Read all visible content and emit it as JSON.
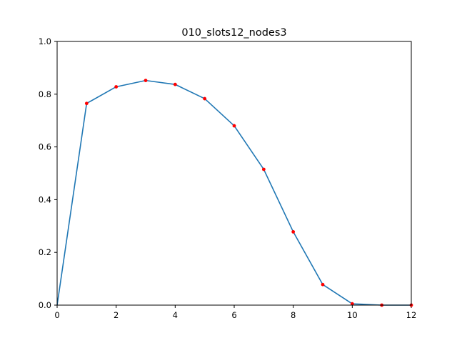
{
  "chart_data": {
    "type": "line",
    "title": "010_slots12_nodes3",
    "xlabel": "",
    "ylabel": "",
    "xlim": [
      0,
      12
    ],
    "ylim": [
      0,
      1.0
    ],
    "grid": false,
    "x_ticks": [
      "0",
      "2",
      "4",
      "6",
      "8",
      "10",
      "12"
    ],
    "y_ticks": [
      "0.0",
      "0.2",
      "0.4",
      "0.6",
      "0.8",
      "1.0"
    ],
    "x": [
      0,
      1,
      2,
      3,
      4,
      5,
      6,
      7,
      8,
      9,
      10,
      11,
      12
    ],
    "series": [
      {
        "values": [
          0.0,
          0.765,
          0.828,
          0.852,
          0.837,
          0.783,
          0.68,
          0.515,
          0.278,
          0.078,
          0.005,
          0.0,
          0.0
        ],
        "line_color": "#1f77b4",
        "marker_color": "#ff0000",
        "markers_from_index": 1
      }
    ]
  }
}
